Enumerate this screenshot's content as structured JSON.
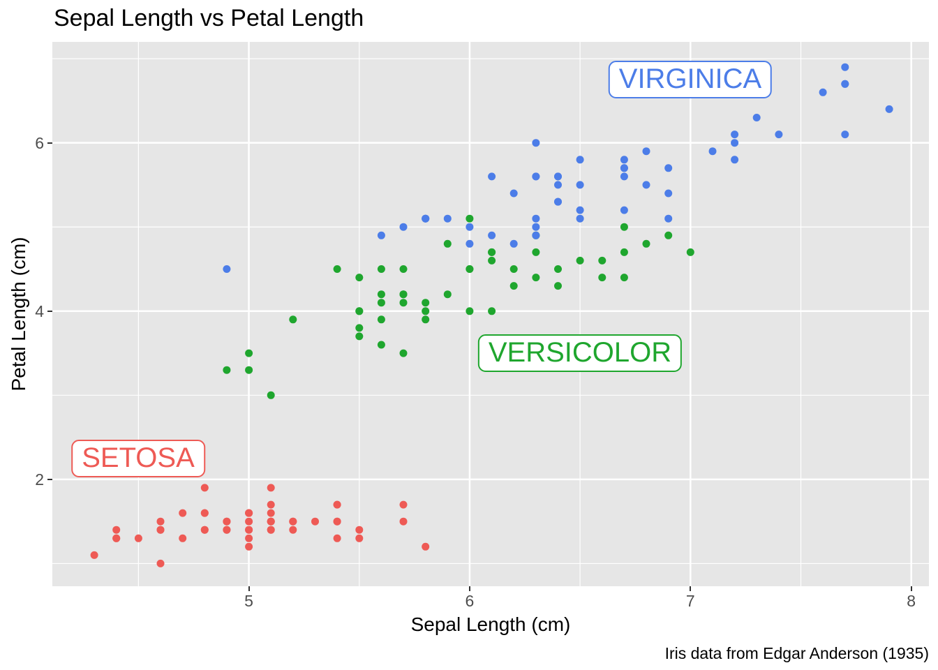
{
  "chart_data": {
    "type": "scatter",
    "title": "Sepal Length vs Petal Length",
    "xlabel": "Sepal Length (cm)",
    "ylabel": "Petal Length (cm)",
    "caption": "Iris data from Edgar Anderson (1935)",
    "legend": "none",
    "grid": true,
    "panel_bg": "#E6E6E6",
    "grid_color": "#FFFFFF",
    "tick_color": "#333333",
    "tick_label_color": "#4D4D4D",
    "xlim": [
      4.11,
      8.08
    ],
    "ylim": [
      0.73,
      7.2
    ],
    "x_ticks": [
      5,
      6,
      7,
      8
    ],
    "y_ticks": [
      2,
      4,
      6
    ],
    "x_minor_ticks": [
      4.5,
      5.5,
      6.5,
      7.5
    ],
    "y_minor_ticks": [
      1,
      3,
      5,
      7
    ],
    "point_radius": 5.5,
    "series": [
      {
        "name": "setosa",
        "color": "#EE5A55",
        "points": [
          [
            5.1,
            1.4
          ],
          [
            4.9,
            1.4
          ],
          [
            4.7,
            1.3
          ],
          [
            4.6,
            1.5
          ],
          [
            5.0,
            1.4
          ],
          [
            5.4,
            1.7
          ],
          [
            4.6,
            1.4
          ],
          [
            5.0,
            1.5
          ],
          [
            4.4,
            1.4
          ],
          [
            4.9,
            1.5
          ],
          [
            5.4,
            1.5
          ],
          [
            4.8,
            1.6
          ],
          [
            4.8,
            1.4
          ],
          [
            4.3,
            1.1
          ],
          [
            5.8,
            1.2
          ],
          [
            5.7,
            1.5
          ],
          [
            5.4,
            1.3
          ],
          [
            5.1,
            1.4
          ],
          [
            5.7,
            1.7
          ],
          [
            5.1,
            1.5
          ],
          [
            5.4,
            1.7
          ],
          [
            5.1,
            1.5
          ],
          [
            4.6,
            1.0
          ],
          [
            5.1,
            1.7
          ],
          [
            4.8,
            1.9
          ],
          [
            5.0,
            1.6
          ],
          [
            5.0,
            1.6
          ],
          [
            5.2,
            1.5
          ],
          [
            5.2,
            1.4
          ],
          [
            4.7,
            1.6
          ],
          [
            4.8,
            1.6
          ],
          [
            5.4,
            1.5
          ],
          [
            5.2,
            1.5
          ],
          [
            5.5,
            1.4
          ],
          [
            4.9,
            1.5
          ],
          [
            5.0,
            1.2
          ],
          [
            5.5,
            1.3
          ],
          [
            4.9,
            1.4
          ],
          [
            4.4,
            1.3
          ],
          [
            5.1,
            1.5
          ],
          [
            5.0,
            1.3
          ],
          [
            4.5,
            1.3
          ],
          [
            4.4,
            1.3
          ],
          [
            5.0,
            1.6
          ],
          [
            5.1,
            1.9
          ],
          [
            4.8,
            1.4
          ],
          [
            5.1,
            1.6
          ],
          [
            4.6,
            1.4
          ],
          [
            5.3,
            1.5
          ],
          [
            5.0,
            1.4
          ]
        ]
      },
      {
        "name": "versicolor",
        "color": "#1FA62E",
        "points": [
          [
            7.0,
            4.7
          ],
          [
            6.4,
            4.5
          ],
          [
            6.9,
            4.9
          ],
          [
            5.5,
            4.0
          ],
          [
            6.5,
            4.6
          ],
          [
            5.7,
            4.5
          ],
          [
            6.3,
            4.7
          ],
          [
            4.9,
            3.3
          ],
          [
            6.6,
            4.6
          ],
          [
            5.2,
            3.9
          ],
          [
            5.0,
            3.5
          ],
          [
            5.9,
            4.2
          ],
          [
            6.0,
            4.0
          ],
          [
            6.1,
            4.7
          ],
          [
            5.6,
            3.6
          ],
          [
            6.7,
            4.4
          ],
          [
            5.6,
            4.5
          ],
          [
            5.8,
            4.1
          ],
          [
            6.2,
            4.5
          ],
          [
            5.6,
            3.9
          ],
          [
            5.9,
            4.8
          ],
          [
            6.1,
            4.0
          ],
          [
            6.3,
            4.9
          ],
          [
            6.1,
            4.7
          ],
          [
            6.4,
            4.3
          ],
          [
            6.6,
            4.4
          ],
          [
            6.8,
            4.8
          ],
          [
            6.7,
            5.0
          ],
          [
            6.0,
            4.5
          ],
          [
            5.7,
            3.5
          ],
          [
            5.5,
            3.8
          ],
          [
            5.5,
            3.7
          ],
          [
            5.8,
            3.9
          ],
          [
            6.0,
            5.1
          ],
          [
            5.4,
            4.5
          ],
          [
            6.0,
            4.5
          ],
          [
            6.7,
            4.7
          ],
          [
            6.3,
            4.4
          ],
          [
            5.6,
            4.1
          ],
          [
            5.5,
            4.0
          ],
          [
            5.5,
            4.4
          ],
          [
            6.1,
            4.6
          ],
          [
            5.8,
            4.0
          ],
          [
            5.0,
            3.3
          ],
          [
            5.6,
            4.2
          ],
          [
            5.7,
            4.2
          ],
          [
            5.7,
            4.2
          ],
          [
            6.2,
            4.3
          ],
          [
            5.1,
            3.0
          ],
          [
            5.7,
            4.1
          ]
        ]
      },
      {
        "name": "virginica",
        "color": "#4C7DE8",
        "points": [
          [
            6.3,
            6.0
          ],
          [
            5.8,
            5.1
          ],
          [
            7.1,
            5.9
          ],
          [
            6.3,
            5.6
          ],
          [
            6.5,
            5.8
          ],
          [
            7.6,
            6.6
          ],
          [
            4.9,
            4.5
          ],
          [
            7.3,
            6.3
          ],
          [
            6.7,
            5.8
          ],
          [
            7.2,
            6.1
          ],
          [
            6.5,
            5.1
          ],
          [
            6.4,
            5.3
          ],
          [
            6.8,
            5.5
          ],
          [
            5.7,
            5.0
          ],
          [
            5.8,
            5.1
          ],
          [
            6.4,
            5.3
          ],
          [
            6.5,
            5.5
          ],
          [
            7.7,
            6.7
          ],
          [
            7.7,
            6.9
          ],
          [
            6.0,
            5.0
          ],
          [
            6.9,
            5.7
          ],
          [
            5.6,
            4.9
          ],
          [
            7.7,
            6.7
          ],
          [
            6.3,
            4.9
          ],
          [
            6.7,
            5.7
          ],
          [
            7.2,
            6.0
          ],
          [
            6.2,
            4.8
          ],
          [
            6.1,
            4.9
          ],
          [
            6.4,
            5.6
          ],
          [
            7.2,
            5.8
          ],
          [
            7.4,
            6.1
          ],
          [
            7.9,
            6.4
          ],
          [
            6.4,
            5.6
          ],
          [
            6.3,
            5.1
          ],
          [
            6.1,
            5.6
          ],
          [
            7.7,
            6.1
          ],
          [
            6.3,
            5.6
          ],
          [
            6.4,
            5.5
          ],
          [
            6.0,
            4.8
          ],
          [
            6.9,
            5.4
          ],
          [
            6.7,
            5.6
          ],
          [
            6.9,
            5.1
          ],
          [
            5.8,
            5.1
          ],
          [
            6.8,
            5.9
          ],
          [
            6.7,
            5.7
          ],
          [
            6.7,
            5.2
          ],
          [
            6.3,
            5.0
          ],
          [
            6.5,
            5.2
          ],
          [
            6.2,
            5.4
          ],
          [
            5.9,
            5.1
          ]
        ]
      }
    ],
    "annotations": [
      {
        "text": "VIRGINICA",
        "color": "#4C7DE8",
        "x": 7.0,
        "y": 6.75
      },
      {
        "text": "VERSICOLOR",
        "color": "#1FA62E",
        "x": 6.5,
        "y": 3.5
      },
      {
        "text": "SETOSA",
        "color": "#EE5A55",
        "x": 4.5,
        "y": 2.25
      }
    ]
  }
}
